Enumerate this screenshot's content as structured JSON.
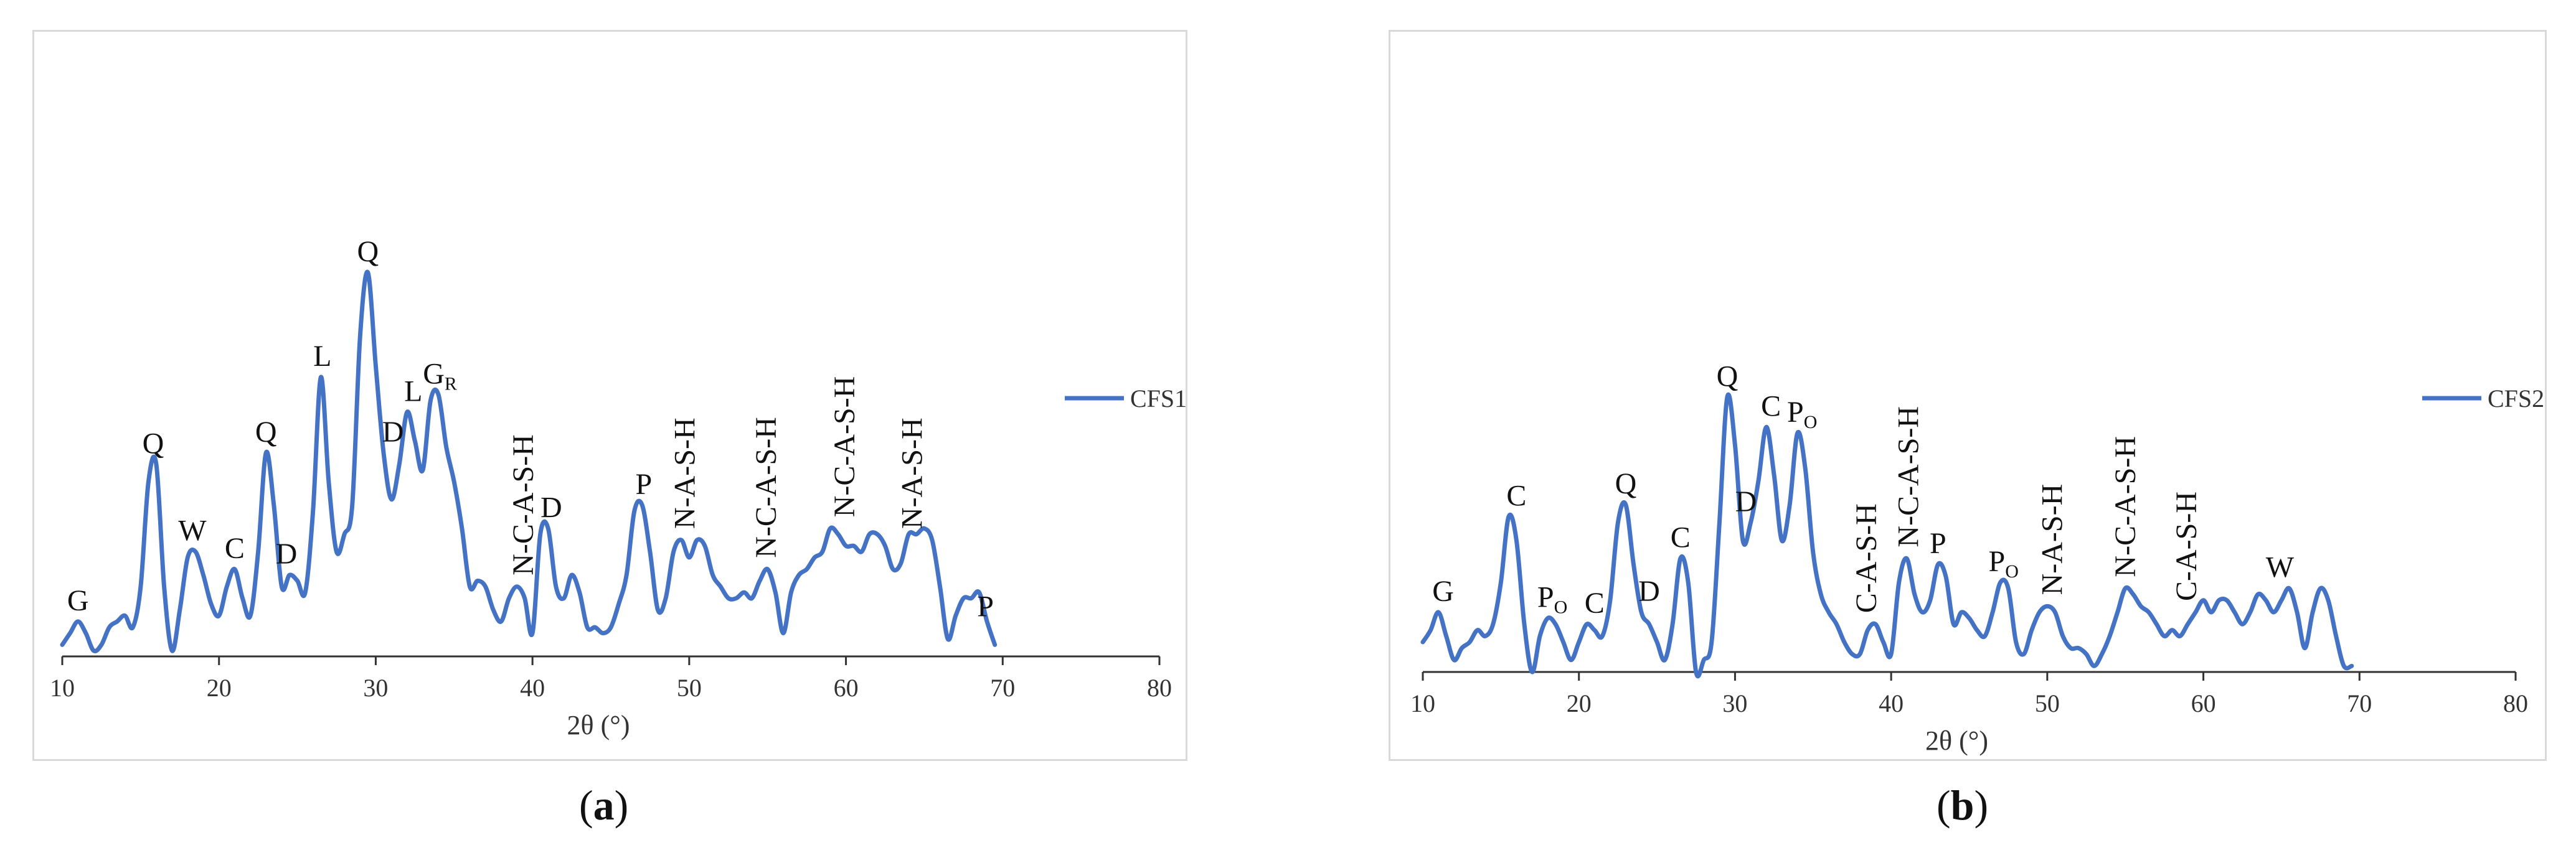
{
  "chart_data": [
    {
      "type": "line",
      "panel": "a",
      "caption_open": "(",
      "caption_letter": "a",
      "caption_close": ")",
      "xlabel": "2θ (°)",
      "xlim": [
        10,
        80
      ],
      "xticks": [
        10,
        20,
        30,
        40,
        50,
        60,
        70,
        80
      ],
      "series": [
        {
          "name": "CFS1",
          "color": "#4472C4",
          "x": [
            10,
            10.5,
            11,
            11.5,
            12,
            12.5,
            13,
            13.5,
            14,
            14.5,
            15,
            15.5,
            16,
            16.5,
            17,
            17.5,
            18,
            18.5,
            19,
            19.5,
            20,
            20.5,
            21,
            21.5,
            22,
            22.5,
            23,
            23.5,
            24,
            24.5,
            25,
            25.5,
            26,
            26.5,
            27,
            27.5,
            28,
            28.5,
            29,
            29.5,
            30,
            30.5,
            31,
            31.5,
            32,
            32.5,
            33,
            33.5,
            34,
            34.5,
            35,
            35.5,
            36,
            36.5,
            37,
            37.5,
            38,
            38.5,
            39,
            39.5,
            40,
            40.5,
            41,
            41.5,
            42,
            42.5,
            43,
            43.5,
            44,
            44.5,
            45,
            45.5,
            46,
            46.5,
            47,
            47.5,
            48,
            48.5,
            49,
            49.5,
            50,
            50.5,
            51,
            51.5,
            52,
            52.5,
            53,
            53.5,
            54,
            54.5,
            55,
            55.5,
            56,
            56.5,
            57,
            57.5,
            58,
            58.5,
            59,
            59.5,
            60,
            60.5,
            61,
            61.5,
            62,
            62.5,
            63,
            63.5,
            64,
            64.5,
            65,
            65.5,
            66,
            66.5,
            67,
            67.5,
            68,
            68.5,
            69,
            69.5
          ],
          "y": [
            0.02,
            0.04,
            0.06,
            0.04,
            0.01,
            0.02,
            0.05,
            0.06,
            0.07,
            0.05,
            0.12,
            0.3,
            0.33,
            0.12,
            0.01,
            0.08,
            0.17,
            0.18,
            0.14,
            0.09,
            0.07,
            0.12,
            0.15,
            0.1,
            0.07,
            0.18,
            0.35,
            0.26,
            0.12,
            0.14,
            0.13,
            0.11,
            0.25,
            0.48,
            0.3,
            0.18,
            0.21,
            0.26,
            0.55,
            0.66,
            0.5,
            0.35,
            0.27,
            0.33,
            0.42,
            0.37,
            0.32,
            0.44,
            0.45,
            0.36,
            0.3,
            0.22,
            0.12,
            0.13,
            0.12,
            0.08,
            0.06,
            0.1,
            0.12,
            0.1,
            0.04,
            0.21,
            0.22,
            0.12,
            0.1,
            0.14,
            0.11,
            0.05,
            0.05,
            0.04,
            0.05,
            0.09,
            0.14,
            0.25,
            0.26,
            0.18,
            0.08,
            0.1,
            0.18,
            0.2,
            0.17,
            0.2,
            0.19,
            0.14,
            0.12,
            0.1,
            0.1,
            0.11,
            0.1,
            0.13,
            0.15,
            0.11,
            0.04,
            0.11,
            0.14,
            0.15,
            0.17,
            0.18,
            0.22,
            0.21,
            0.19,
            0.19,
            0.18,
            0.21,
            0.21,
            0.19,
            0.15,
            0.16,
            0.21,
            0.21,
            0.22,
            0.2,
            0.12,
            0.03,
            0.07,
            0.1,
            0.1,
            0.11,
            0.06,
            0.02
          ]
        }
      ],
      "peak_labels": [
        {
          "x": 11.0,
          "y": 0.06,
          "text": "G",
          "sub": "",
          "vertical": false
        },
        {
          "x": 15.8,
          "y": 0.33,
          "text": "Q",
          "sub": "",
          "vertical": false
        },
        {
          "x": 18.3,
          "y": 0.18,
          "text": "W",
          "sub": "",
          "vertical": false
        },
        {
          "x": 21.0,
          "y": 0.15,
          "text": "C",
          "sub": "",
          "vertical": false
        },
        {
          "x": 23.0,
          "y": 0.35,
          "text": "Q",
          "sub": "",
          "vertical": false
        },
        {
          "x": 24.3,
          "y": 0.14,
          "text": "D",
          "sub": "",
          "vertical": false
        },
        {
          "x": 26.6,
          "y": 0.48,
          "text": "L",
          "sub": "",
          "vertical": false
        },
        {
          "x": 29.5,
          "y": 0.66,
          "text": "Q",
          "sub": "",
          "vertical": false
        },
        {
          "x": 31.1,
          "y": 0.35,
          "text": "D",
          "sub": "",
          "vertical": false
        },
        {
          "x": 32.4,
          "y": 0.42,
          "text": "L",
          "sub": "",
          "vertical": false
        },
        {
          "x": 34.1,
          "y": 0.45,
          "text": "G",
          "sub": "R",
          "vertical": false
        },
        {
          "x": 39.4,
          "y": 0.12,
          "text": "N-C-A-S-H",
          "sub": "",
          "vertical": true
        },
        {
          "x": 41.2,
          "y": 0.22,
          "text": "D",
          "sub": "",
          "vertical": false
        },
        {
          "x": 47.1,
          "y": 0.26,
          "text": "P",
          "sub": "",
          "vertical": false
        },
        {
          "x": 49.7,
          "y": 0.2,
          "text": "N-A-S-H",
          "sub": "",
          "vertical": true
        },
        {
          "x": 54.9,
          "y": 0.15,
          "text": "N-C-A-S-H",
          "sub": "",
          "vertical": true
        },
        {
          "x": 59.9,
          "y": 0.22,
          "text": "N-C-A-S-H",
          "sub": "",
          "vertical": true
        },
        {
          "x": 64.2,
          "y": 0.2,
          "text": "N-A-S-H",
          "sub": "",
          "vertical": true
        },
        {
          "x": 68.9,
          "y": 0.05,
          "text": "P",
          "sub": "",
          "vertical": false
        }
      ],
      "legend": "right"
    },
    {
      "type": "line",
      "panel": "b",
      "caption_open": "(",
      "caption_letter": "b",
      "caption_close": ")",
      "xlabel": "2θ (°)",
      "xlim": [
        10,
        80
      ],
      "xticks": [
        10,
        20,
        30,
        40,
        50,
        60,
        70,
        80
      ],
      "series": [
        {
          "name": "CFS2",
          "color": "#4472C4",
          "x": [
            10,
            10.5,
            11,
            11.5,
            12,
            12.5,
            13,
            13.5,
            14,
            14.5,
            15,
            15.5,
            16,
            16.5,
            17,
            17.5,
            18,
            18.5,
            19,
            19.5,
            20,
            20.5,
            21,
            21.5,
            22,
            22.5,
            23,
            23.5,
            24,
            24.5,
            25,
            25.5,
            26,
            26.5,
            27,
            27.5,
            28,
            28.5,
            29,
            29.5,
            30,
            30.5,
            31,
            31.5,
            32,
            32.5,
            33,
            33.5,
            34,
            34.5,
            35,
            35.5,
            36,
            36.5,
            37,
            37.5,
            38,
            38.5,
            39,
            39.5,
            40,
            40.5,
            41,
            41.5,
            42,
            42.5,
            43,
            43.5,
            44,
            44.5,
            45,
            45.5,
            46,
            46.5,
            47,
            47.5,
            48,
            48.5,
            49,
            49.5,
            50,
            50.5,
            51,
            51.5,
            52,
            52.5,
            53,
            53.5,
            54,
            54.5,
            55,
            55.5,
            56,
            56.5,
            57,
            57.5,
            58,
            58.5,
            59,
            59.5,
            60,
            60.5,
            61,
            61.5,
            62,
            62.5,
            63,
            63.5,
            64,
            64.5,
            65,
            65.5,
            66,
            66.5,
            67,
            67.5,
            68,
            68.5,
            69,
            69.5
          ],
          "y": [
            0.05,
            0.07,
            0.1,
            0.06,
            0.02,
            0.04,
            0.05,
            0.07,
            0.06,
            0.08,
            0.15,
            0.26,
            0.22,
            0.08,
            0.0,
            0.06,
            0.09,
            0.08,
            0.05,
            0.02,
            0.05,
            0.08,
            0.07,
            0.06,
            0.12,
            0.25,
            0.28,
            0.18,
            0.1,
            0.08,
            0.05,
            0.02,
            0.08,
            0.19,
            0.15,
            0.0,
            0.02,
            0.05,
            0.25,
            0.46,
            0.38,
            0.22,
            0.25,
            0.32,
            0.41,
            0.33,
            0.22,
            0.28,
            0.4,
            0.34,
            0.2,
            0.13,
            0.1,
            0.08,
            0.05,
            0.03,
            0.03,
            0.07,
            0.08,
            0.05,
            0.03,
            0.15,
            0.19,
            0.13,
            0.1,
            0.12,
            0.18,
            0.16,
            0.08,
            0.1,
            0.09,
            0.07,
            0.06,
            0.1,
            0.15,
            0.14,
            0.05,
            0.03,
            0.07,
            0.1,
            0.11,
            0.1,
            0.06,
            0.04,
            0.04,
            0.03,
            0.01,
            0.03,
            0.06,
            0.1,
            0.14,
            0.13,
            0.11,
            0.1,
            0.08,
            0.06,
            0.07,
            0.06,
            0.08,
            0.1,
            0.12,
            0.1,
            0.12,
            0.12,
            0.1,
            0.08,
            0.1,
            0.13,
            0.12,
            0.1,
            0.12,
            0.14,
            0.1,
            0.04,
            0.1,
            0.14,
            0.12,
            0.06,
            0.01,
            0.01
          ]
        }
      ],
      "peak_labels": [
        {
          "x": 11.3,
          "y": 0.1,
          "text": "G",
          "sub": "",
          "vertical": false
        },
        {
          "x": 16.0,
          "y": 0.26,
          "text": "C",
          "sub": "",
          "vertical": false
        },
        {
          "x": 18.3,
          "y": 0.09,
          "text": "P",
          "sub": "O",
          "vertical": false
        },
        {
          "x": 21.0,
          "y": 0.08,
          "text": "C",
          "sub": "",
          "vertical": false
        },
        {
          "x": 23.0,
          "y": 0.28,
          "text": "Q",
          "sub": "",
          "vertical": false
        },
        {
          "x": 24.5,
          "y": 0.1,
          "text": "D",
          "sub": "",
          "vertical": false
        },
        {
          "x": 26.5,
          "y": 0.19,
          "text": "C",
          "sub": "",
          "vertical": false
        },
        {
          "x": 29.5,
          "y": 0.46,
          "text": "Q",
          "sub": "",
          "vertical": false
        },
        {
          "x": 30.7,
          "y": 0.25,
          "text": "D",
          "sub": "",
          "vertical": false
        },
        {
          "x": 32.3,
          "y": 0.41,
          "text": "C",
          "sub": "",
          "vertical": false
        },
        {
          "x": 34.3,
          "y": 0.4,
          "text": "P",
          "sub": "O",
          "vertical": false
        },
        {
          "x": 38.4,
          "y": 0.08,
          "text": "C-A-S-H",
          "sub": "",
          "vertical": true
        },
        {
          "x": 41.1,
          "y": 0.19,
          "text": "N-C-A-S-H",
          "sub": "",
          "vertical": true
        },
        {
          "x": 43.0,
          "y": 0.18,
          "text": "P",
          "sub": "",
          "vertical": false
        },
        {
          "x": 47.2,
          "y": 0.15,
          "text": "P",
          "sub": "O",
          "vertical": false
        },
        {
          "x": 50.3,
          "y": 0.11,
          "text": "N-A-S-H",
          "sub": "",
          "vertical": true
        },
        {
          "x": 55.0,
          "y": 0.14,
          "text": "N-C-A-S-H",
          "sub": "",
          "vertical": true
        },
        {
          "x": 58.9,
          "y": 0.1,
          "text": "C-A-S-H",
          "sub": "",
          "vertical": true
        },
        {
          "x": 64.9,
          "y": 0.14,
          "text": "W",
          "sub": "",
          "vertical": false
        }
      ],
      "legend": "right"
    }
  ]
}
